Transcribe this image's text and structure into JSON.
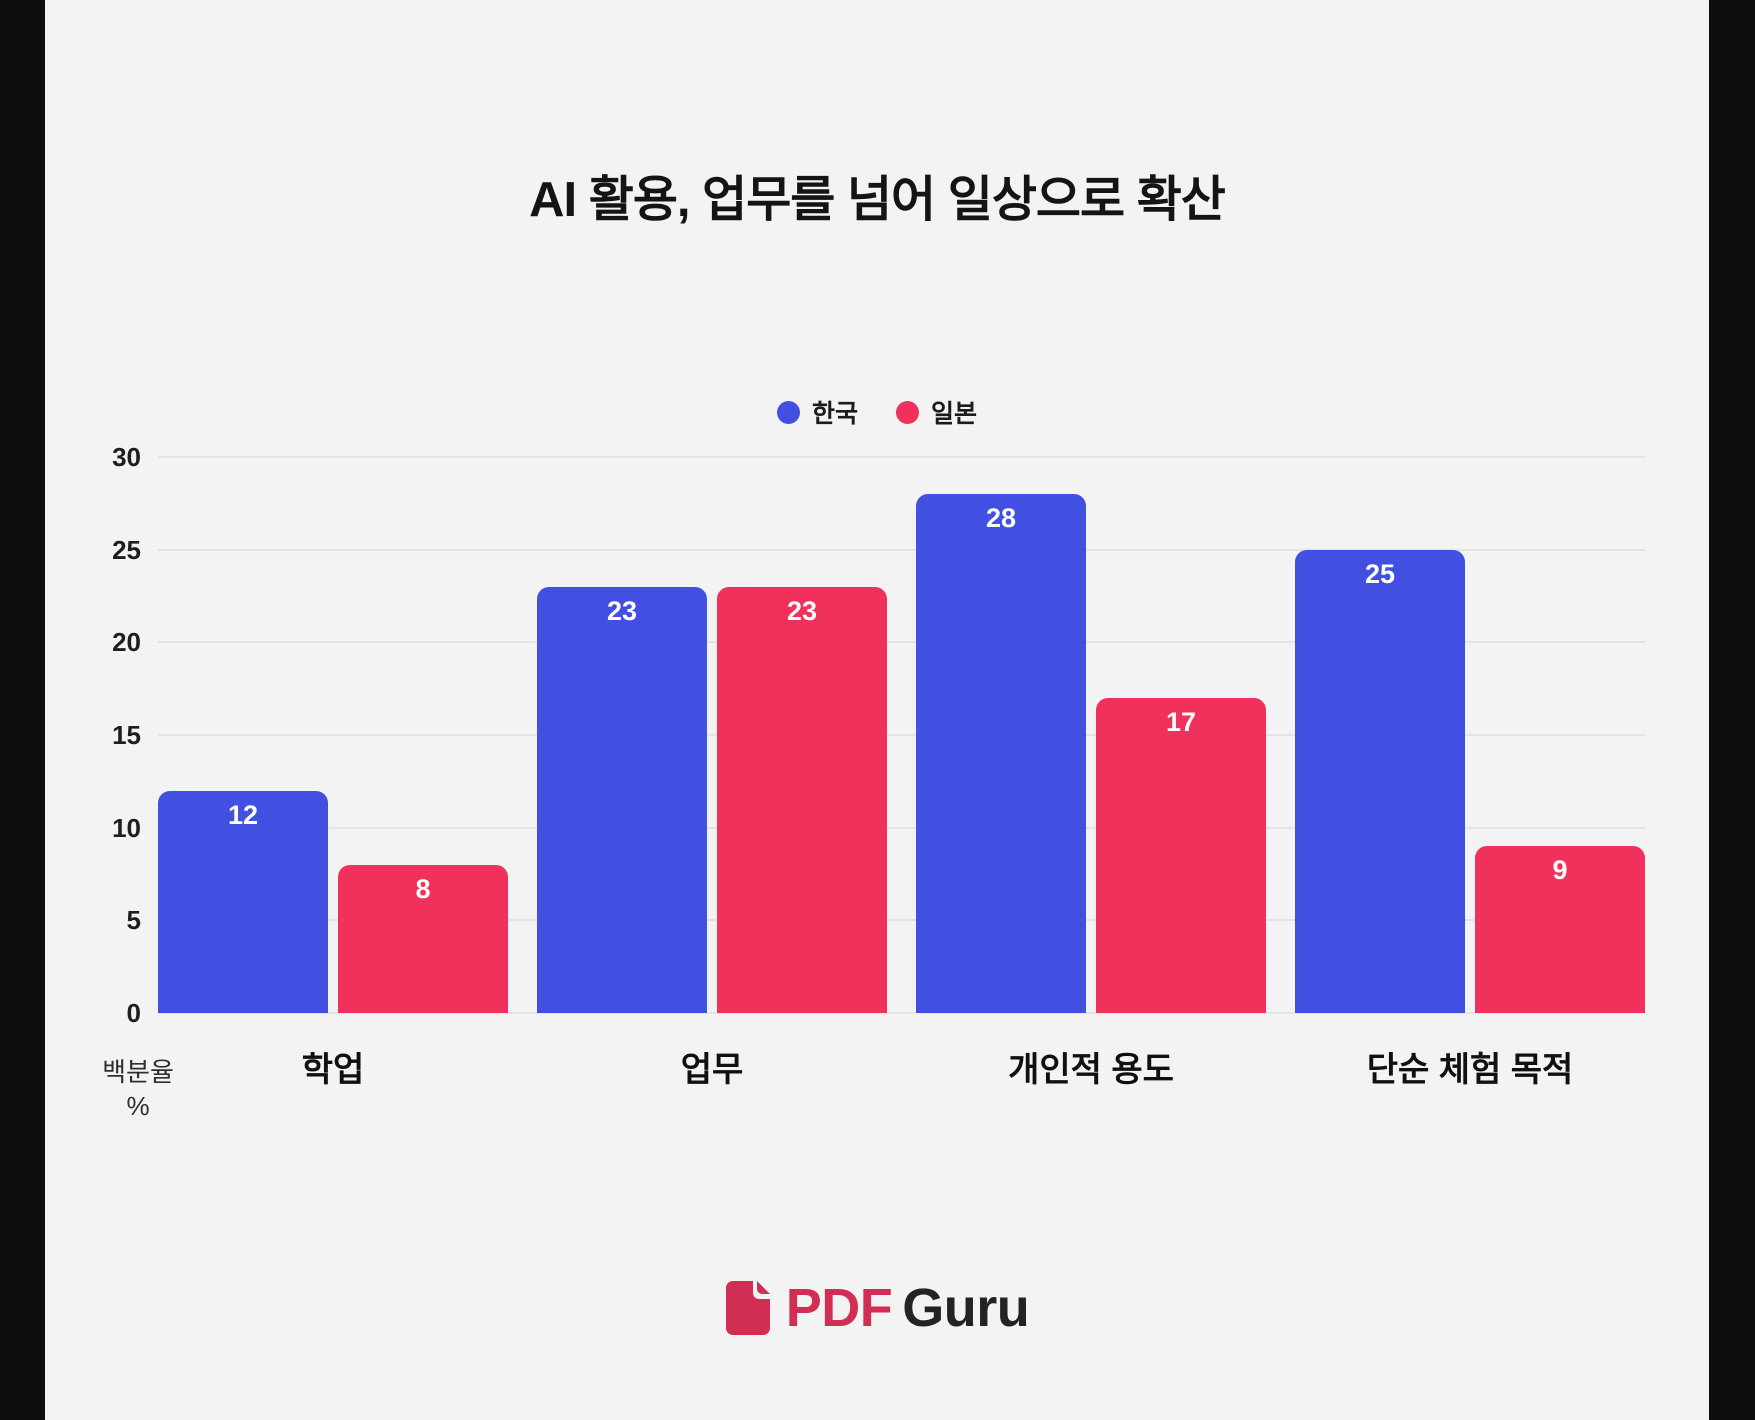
{
  "chart": {
    "title": "AI 활용, 업무를 넘어 일상으로 확산"
  },
  "chart_data": {
    "type": "bar",
    "title": "AI 활용, 업무를 넘어 일상으로 확산",
    "categories": [
      "학업",
      "업무",
      "개인적 용도",
      "단순 체험 목적"
    ],
    "series": [
      {
        "key": "korea",
        "name": "한국",
        "color": "#4150e0",
        "values": [
          12,
          23,
          28,
          25
        ]
      },
      {
        "key": "japan",
        "name": "일본",
        "color": "#f0315b",
        "values": [
          8,
          23,
          17,
          9
        ]
      }
    ],
    "xlabel": "",
    "ylabel": "백분율 %",
    "ylim": [
      0,
      30
    ],
    "yticks": [
      0,
      5,
      10,
      15,
      20,
      25,
      30
    ],
    "grid": true,
    "legend_position": "top-center",
    "value_labels": "inside-top-white"
  },
  "y_axis_unit": {
    "line1": "백분율",
    "line2": "%"
  },
  "footer": {
    "logo_pdf": "PDF",
    "logo_guru": "Guru",
    "logo_icon": "document-icon"
  },
  "colors": {
    "korea_blue": "#4150e0",
    "japan_red": "#f0315b",
    "panel_background": "#f3f3f4",
    "frame_black": "#0d0d0e",
    "gridline": "#e3e3e4",
    "logo_crimson": "#d22d52"
  }
}
